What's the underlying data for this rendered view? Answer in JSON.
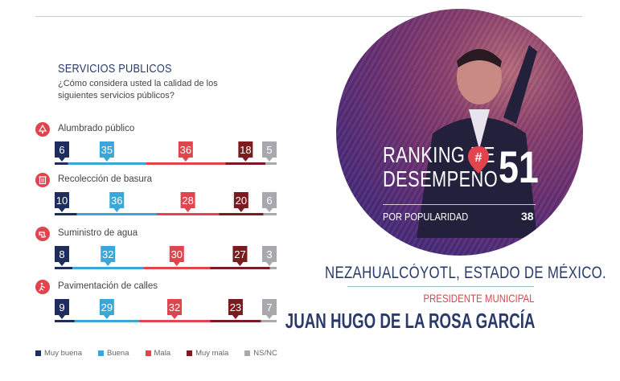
{
  "section": {
    "title": "SERVICIOS PUBLICOS",
    "question": "¿Cómo considera usted la calidad de los siguientes servicios públicos?"
  },
  "colors": {
    "muy_buena": "#1f2d5c",
    "buena": "#3aa7d8",
    "mala": "#e0454e",
    "muy_mala": "#7a1c1f",
    "nsnc": "#a7a9ac"
  },
  "legend": [
    "Muy buena",
    "Buena",
    "Mala",
    "Muy mala",
    "NS/NC"
  ],
  "chart_data": {
    "type": "bar",
    "orientation": "horizontal-stacked",
    "categories": [
      "Alumbrado público",
      "Recolección de basura",
      "Suministro de agua",
      "Pavimentación de calles"
    ],
    "icons": [
      "lamp-icon",
      "trash-icon",
      "water-icon",
      "road-work-icon"
    ],
    "series": [
      {
        "name": "Muy buena",
        "values": [
          6,
          10,
          8,
          9
        ]
      },
      {
        "name": "Buena",
        "values": [
          35,
          36,
          32,
          29
        ]
      },
      {
        "name": "Mala",
        "values": [
          36,
          28,
          30,
          32
        ]
      },
      {
        "name": "Muy mala",
        "values": [
          18,
          20,
          27,
          23
        ]
      },
      {
        "name": "NS/NC",
        "values": [
          5,
          6,
          3,
          7
        ]
      }
    ],
    "title": "SERVICIOS PUBLICOS",
    "legend_position": "bottom"
  },
  "ranking": {
    "line1": "RANKING DE",
    "line2": "DESEMPEÑO",
    "badge": "#",
    "number": "51",
    "popularity_label": "POR POPULARIDAD",
    "popularity_value": "38"
  },
  "location": "NEZAHUALCÓYOTL, ESTADO DE MÉXICO.",
  "role": "PRESIDENTE MUNICIPAL",
  "name": "JUAN HUGO DE LA ROSA GARCÍA"
}
